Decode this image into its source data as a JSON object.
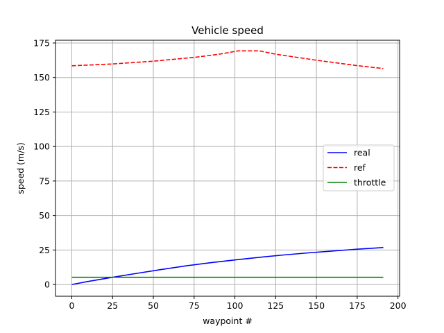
{
  "chart_data": {
    "type": "line",
    "title": "Vehicle speed",
    "xlabel": "waypoint #",
    "ylabel": "speed (m/s)",
    "xlim": [
      -10,
      201
    ],
    "ylim": [
      -8.5,
      177
    ],
    "xticks": [
      0,
      25,
      50,
      75,
      100,
      125,
      150,
      175,
      200
    ],
    "yticks": [
      0,
      25,
      50,
      75,
      100,
      125,
      150,
      175
    ],
    "grid": true,
    "legend_position": "center-right",
    "series": [
      {
        "name": "real",
        "color": "#0000ff",
        "dash": "solid",
        "x": [
          0,
          10,
          25,
          40,
          55,
          70,
          85,
          100,
          115,
          130,
          145,
          160,
          175,
          191
        ],
        "y": [
          0,
          2.2,
          5.2,
          8.1,
          10.9,
          13.5,
          15.8,
          17.8,
          19.7,
          21.4,
          22.9,
          24.3,
          25.6,
          26.8
        ]
      },
      {
        "name": "ref",
        "color": "#ff0000",
        "dash": "dashed",
        "x": [
          0,
          25,
          50,
          75,
          90,
          102,
          115,
          125,
          150,
          175,
          191
        ],
        "y": [
          158.5,
          159.8,
          161.8,
          164.6,
          166.8,
          169.3,
          169.3,
          166.9,
          162.5,
          158.6,
          156.5
        ]
      },
      {
        "name": "throttle",
        "color": "#008000",
        "dash": "solid",
        "x": [
          0,
          191
        ],
        "y": [
          5.2,
          5.2
        ]
      }
    ]
  }
}
